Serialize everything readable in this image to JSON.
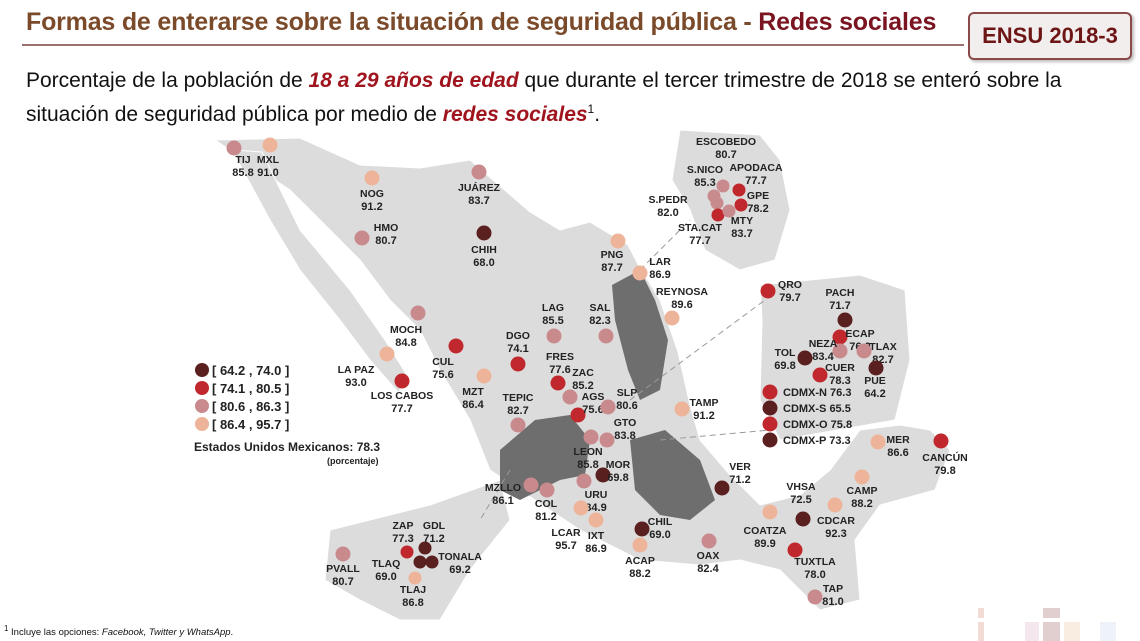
{
  "header": {
    "title_main": "Formas de enterarse sobre la situación de seguridad pública - ",
    "title_accent": "Redes sociales",
    "badge": "ENSU 2018-3"
  },
  "subtitle": {
    "part1": "Porcentaje de la población de ",
    "bold1": "18 a 29 años de edad",
    "part2": " que durante el tercer trimestre de 2018 se enteró sobre la situación de seguridad pública por medio de ",
    "bold2": "redes sociales",
    "sup": "1",
    "part3": "."
  },
  "legend": [
    {
      "label": "[ 64.2 , 74.0 ]",
      "min": 64.2,
      "max": 74.0,
      "color": "#5a1f1f"
    },
    {
      "label": "[ 74.1 , 80.5 ]",
      "min": 74.1,
      "max": 80.5,
      "color": "#c0282d"
    },
    {
      "label": "[ 80.6 , 86.3 ]",
      "min": 80.6,
      "max": 86.3,
      "color": "#c98a8e"
    },
    {
      "label": "[ 86.4 , 95.7 ]",
      "min": 86.4,
      "max": 95.7,
      "color": "#eeb49a"
    }
  ],
  "national": {
    "label": "Estados Unidos Mexicanos:",
    "value": "78.3",
    "unit": "(porcentaje)"
  },
  "cities": [
    {
      "name": "TIJ",
      "value": "85.8"
    },
    {
      "name": "MXL",
      "value": "91.0"
    },
    {
      "name": "NOG",
      "value": "91.2"
    },
    {
      "name": "JUÁREZ",
      "value": "83.7"
    },
    {
      "name": "HMO",
      "value": "80.7"
    },
    {
      "name": "CHIH",
      "value": "68.0"
    },
    {
      "name": "MOCH",
      "value": "84.8"
    },
    {
      "name": "CUL",
      "value": "75.6"
    },
    {
      "name": "LA PAZ",
      "value": "93.0"
    },
    {
      "name": "LOS CABOS",
      "value": "77.7"
    },
    {
      "name": "MZT",
      "value": "86.4"
    },
    {
      "name": "DGO",
      "value": "74.1"
    },
    {
      "name": "LAG",
      "value": "85.5"
    },
    {
      "name": "SAL",
      "value": "82.3"
    },
    {
      "name": "FRES",
      "value": "77.6"
    },
    {
      "name": "ZAC",
      "value": "85.2"
    },
    {
      "name": "AGS",
      "value": "75.6"
    },
    {
      "name": "SLP",
      "value": "80.6"
    },
    {
      "name": "TEPIC",
      "value": "82.7"
    },
    {
      "name": "GTO",
      "value": "83.8"
    },
    {
      "name": "LEON",
      "value": "85.8"
    },
    {
      "name": "MOR",
      "value": "69.8"
    },
    {
      "name": "URU",
      "value": "84.9"
    },
    {
      "name": "MZLLO",
      "value": "86.1"
    },
    {
      "name": "COL",
      "value": "81.2"
    },
    {
      "name": "LCAR",
      "value": "95.7"
    },
    {
      "name": "IXT",
      "value": "86.9"
    },
    {
      "name": "ACAP",
      "value": "88.2"
    },
    {
      "name": "CHIL",
      "value": "69.0"
    },
    {
      "name": "OAX",
      "value": "82.4"
    },
    {
      "name": "TAMP",
      "value": "91.2"
    },
    {
      "name": "VER",
      "value": "71.2"
    },
    {
      "name": "PNG",
      "value": "87.7"
    },
    {
      "name": "LAR",
      "value": "86.9"
    },
    {
      "name": "REYNOSA",
      "value": "89.6"
    },
    {
      "name": "ESCOBEDO",
      "value": "80.7"
    },
    {
      "name": "S.NICO",
      "value": "85.3"
    },
    {
      "name": "APODACA",
      "value": "77.7"
    },
    {
      "name": "GPE",
      "value": "78.2"
    },
    {
      "name": "S.PEDR",
      "value": "82.0"
    },
    {
      "name": "STA.CAT",
      "value": "77.7"
    },
    {
      "name": "MTY",
      "value": "83.7"
    },
    {
      "name": "QRO",
      "value": "79.7"
    },
    {
      "name": "PACH",
      "value": "71.7"
    },
    {
      "name": "ECAP",
      "value": "76.0"
    },
    {
      "name": "NEZA",
      "value": "83.4"
    },
    {
      "name": "TLAX",
      "value": "82.7"
    },
    {
      "name": "TOL",
      "value": "69.8"
    },
    {
      "name": "CUER",
      "value": "78.3"
    },
    {
      "name": "PUE",
      "value": "64.2"
    },
    {
      "name": "CDMX-N",
      "value": "76.3"
    },
    {
      "name": "CDMX-S",
      "value": "65.5"
    },
    {
      "name": "CDMX-O",
      "value": "75.8"
    },
    {
      "name": "CDMX-P",
      "value": "73.3"
    },
    {
      "name": "MER",
      "value": "86.6"
    },
    {
      "name": "CANCÚN",
      "value": "79.8"
    },
    {
      "name": "CAMP",
      "value": "88.2"
    },
    {
      "name": "VHSA",
      "value": "72.5"
    },
    {
      "name": "CDCAR",
      "value": "92.3"
    },
    {
      "name": "COATZA",
      "value": "89.9"
    },
    {
      "name": "TUXTLA",
      "value": "78.0"
    },
    {
      "name": "TAP",
      "value": "81.0"
    },
    {
      "name": "ZAP",
      "value": "77.3"
    },
    {
      "name": "GDL",
      "value": "71.2"
    },
    {
      "name": "TLAQ",
      "value": "69.0"
    },
    {
      "name": "TONALA",
      "value": "69.2"
    },
    {
      "name": "TLAJ",
      "value": "86.8"
    },
    {
      "name": "PVALL",
      "value": "80.7"
    }
  ],
  "footnote": {
    "sup": "1",
    "text": " Incluye las opciones: ",
    "italic": "Facebook, Twitter y WhatsApp",
    "end": "."
  },
  "colors": {
    "land": "#dcdcdc",
    "highlight_land": "#6e6e6e",
    "title": "#7a4a2a",
    "accent": "#7a1420"
  }
}
